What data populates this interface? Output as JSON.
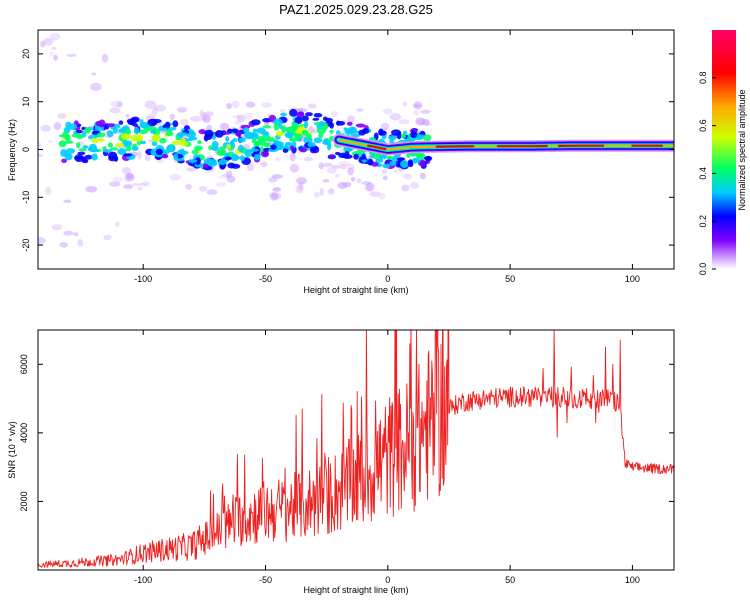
{
  "title": "PAZ1.2025.029.23.28.G25",
  "chart_data": [
    {
      "type": "heatmap",
      "xlabel": "Height of straight line (km)",
      "ylabel": "Frequency (Hz)",
      "xlim": [
        -143,
        117
      ],
      "ylim": [
        -25,
        25
      ],
      "xticks": [
        -100,
        -50,
        0,
        50,
        100
      ],
      "yticks": [
        -20,
        -10,
        0,
        10,
        20
      ],
      "grid": false,
      "colorbar": {
        "label": "Normalized spectral amplitude",
        "range": [
          0,
          1
        ],
        "ticks": [
          0.0,
          0.2,
          0.4,
          0.6,
          0.8
        ],
        "colors": [
          "#ffffff",
          "#cc99ff",
          "#7f00ff",
          "#0000ff",
          "#00ccff",
          "#00ff66",
          "#ccff00",
          "#ffaa00",
          "#ff0000",
          "#ff0066"
        ]
      },
      "ridge": {
        "x": [
          -120,
          -110,
          -100,
          -90,
          -80,
          -70,
          -60,
          -50,
          -40,
          -30,
          -20,
          -10,
          0,
          10,
          20,
          40,
          60,
          80,
          100,
          117
        ],
        "y": [
          1.5,
          2.0,
          2.5,
          2.0,
          0.5,
          -0.5,
          0.5,
          2.5,
          4.0,
          3.5,
          2.0,
          1.0,
          0.0,
          0.5,
          0.6,
          0.7,
          0.7,
          0.8,
          0.8,
          0.8
        ]
      }
    },
    {
      "type": "line",
      "xlabel": "Height of straight line (km)",
      "ylabel": "SNR (10 * v/v)",
      "xlim": [
        -143,
        117
      ],
      "ylim": [
        0,
        7000
      ],
      "xticks": [
        -100,
        -50,
        0,
        50,
        100
      ],
      "yticks": [
        2000,
        4000,
        6000
      ],
      "color": "#ee2020",
      "grid": false,
      "envelope": {
        "x": [
          -143,
          -130,
          -110,
          -100,
          -90,
          -80,
          -70,
          -60,
          -50,
          -40,
          -30,
          -20,
          -10,
          0,
          10,
          20,
          30,
          40,
          50,
          60,
          70,
          80,
          90,
          95,
          97,
          100,
          110,
          117
        ],
        "y": [
          150,
          200,
          300,
          500,
          600,
          700,
          1100,
          1500,
          1700,
          1800,
          2000,
          2300,
          2700,
          3300,
          3700,
          4500,
          4900,
          5000,
          5050,
          5050,
          5050,
          5000,
          5000,
          4800,
          3100,
          3000,
          2950,
          2950
        ]
      },
      "spikes": [
        {
          "x": 9,
          "y": 6600
        },
        {
          "x": 68,
          "y": 7000
        },
        {
          "x": 89,
          "y": 6500
        },
        {
          "x": 95,
          "y": 6700
        },
        {
          "x": 92,
          "y": 6000
        },
        {
          "x": -35,
          "y": 4700
        },
        {
          "x": -15,
          "y": 4800
        }
      ]
    }
  ]
}
